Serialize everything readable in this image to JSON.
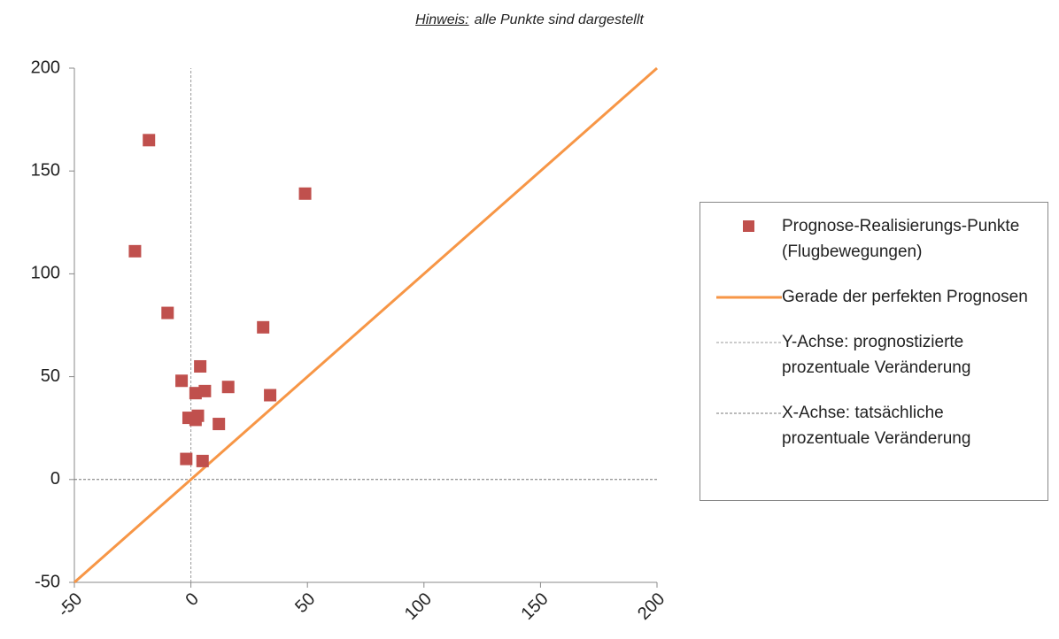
{
  "chart_data": {
    "type": "scatter",
    "title_label": "Hinweis:",
    "title": "alle Punkte sind dargestellt",
    "xlim": [
      -50,
      200
    ],
    "ylim": [
      -50,
      200
    ],
    "xticks": [
      -50,
      0,
      50,
      100,
      150,
      200
    ],
    "yticks": [
      -50,
      0,
      50,
      100,
      150,
      200
    ],
    "legend": "right",
    "series": [
      {
        "name": "Prognose-Realisierungs-Punkte (Flugbewegungen)",
        "type": "scatter",
        "color": "#c0504d",
        "x": [
          -18,
          -24,
          -10,
          49,
          31,
          34,
          -4,
          4,
          2,
          6,
          16,
          -1,
          3,
          2,
          12,
          -2,
          5
        ],
        "values": [
          165,
          111,
          81,
          139,
          74,
          41,
          48,
          55,
          42,
          43,
          45,
          30,
          31,
          29,
          27,
          10,
          9
        ]
      },
      {
        "name": "Gerade der perfekten Prognosen",
        "type": "line",
        "color": "#f79646",
        "style": "solid",
        "x": [
          -50,
          200
        ],
        "values": [
          -50,
          200
        ]
      },
      {
        "name": "Y-Achse: prognostizierte prozentuale Veränderung",
        "type": "line",
        "color": "#999999",
        "style": "dashed",
        "x": [
          0,
          0
        ],
        "values": [
          -50,
          200
        ]
      },
      {
        "name": "X-Achse: tatsächliche prozentuale Veränderung",
        "type": "line",
        "color": "#777777",
        "style": "dashed",
        "x": [
          -50,
          200
        ],
        "values": [
          0,
          0
        ]
      }
    ]
  }
}
